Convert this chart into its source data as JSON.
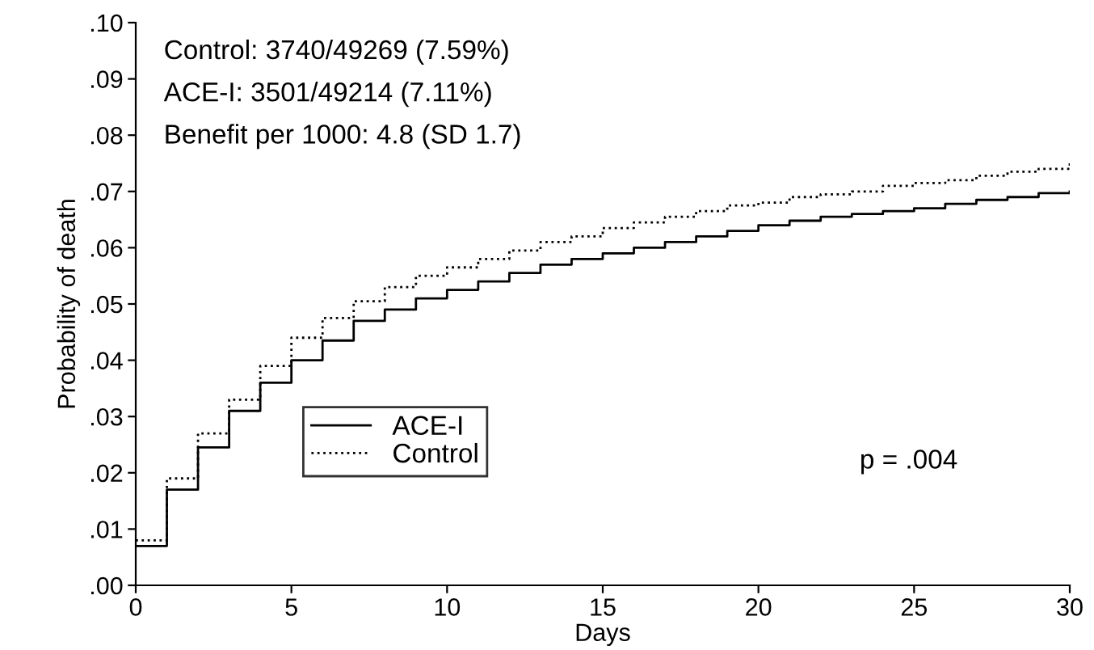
{
  "chart_data": {
    "type": "step",
    "xlabel": "Days",
    "ylabel": "Probability of death",
    "x": [
      0,
      1,
      2,
      3,
      4,
      5,
      6,
      7,
      8,
      9,
      10,
      11,
      12,
      13,
      14,
      15,
      16,
      17,
      18,
      19,
      20,
      21,
      22,
      23,
      24,
      25,
      26,
      27,
      28,
      29,
      30
    ],
    "series": [
      {
        "name": "ACE-I",
        "color": "#000000",
        "line_style": "solid",
        "values": [
          0.007,
          0.017,
          0.0245,
          0.031,
          0.036,
          0.04,
          0.0435,
          0.047,
          0.049,
          0.051,
          0.0525,
          0.054,
          0.0555,
          0.057,
          0.058,
          0.059,
          0.06,
          0.061,
          0.062,
          0.063,
          0.064,
          0.0648,
          0.0655,
          0.066,
          0.0665,
          0.067,
          0.0678,
          0.0685,
          0.069,
          0.0697,
          0.07
        ]
      },
      {
        "name": "Control",
        "color": "#000000",
        "line_style": "dotted",
        "values": [
          0.008,
          0.019,
          0.027,
          0.033,
          0.039,
          0.044,
          0.0475,
          0.0505,
          0.053,
          0.055,
          0.0565,
          0.058,
          0.0595,
          0.061,
          0.062,
          0.0635,
          0.0645,
          0.0655,
          0.0665,
          0.0675,
          0.068,
          0.069,
          0.0695,
          0.07,
          0.071,
          0.0715,
          0.072,
          0.0728,
          0.0735,
          0.074,
          0.075
        ]
      }
    ],
    "xlim": [
      0,
      30
    ],
    "xticks": [
      0,
      5,
      10,
      15,
      20,
      25,
      30
    ],
    "ylim": [
      0,
      0.1
    ],
    "yticks": [
      {
        "value": 0,
        "label": ".00"
      },
      {
        "value": 0.01,
        "label": ".01"
      },
      {
        "value": 0.02,
        "label": ".02"
      },
      {
        "value": 0.03,
        "label": ".03"
      },
      {
        "value": 0.04,
        "label": ".04"
      },
      {
        "value": 0.05,
        "label": ".05"
      },
      {
        "value": 0.06,
        "label": ".06"
      },
      {
        "value": 0.07,
        "label": ".07"
      },
      {
        "value": 0.08,
        "label": ".08"
      },
      {
        "value": 0.09,
        "label": ".09"
      },
      {
        "value": 0.1,
        "label": ".10"
      }
    ],
    "annotations": [
      "Control: 3740/49269 (7.59%)",
      "ACE-I: 3501/49214 (7.11%)",
      "Benefit per 1000: 4.8 (SD 1.7)",
      "p = .004"
    ],
    "legend": "bottom left",
    "grid": false
  }
}
